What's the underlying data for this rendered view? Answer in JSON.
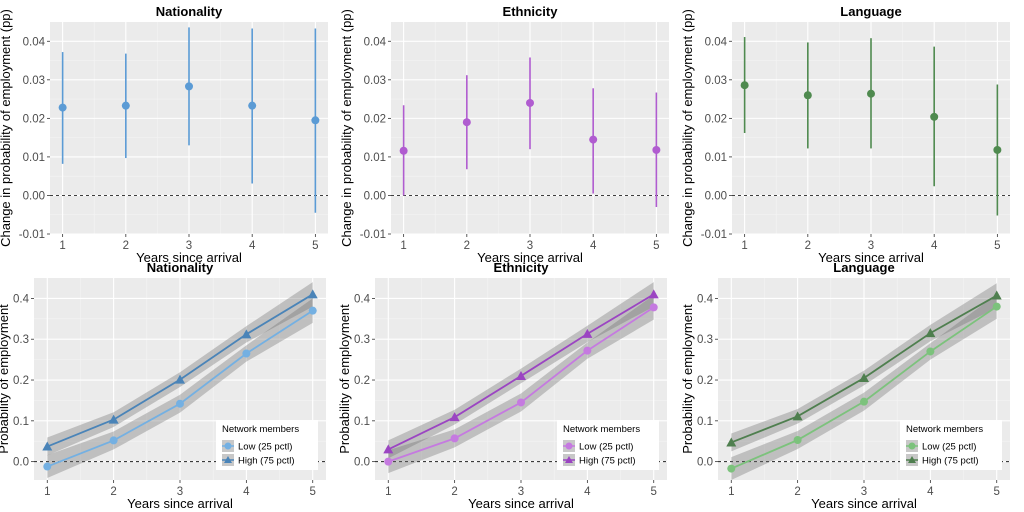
{
  "chart_data": [
    {
      "type": "scatter",
      "title": "Nationality",
      "xlabel": "Years since arrival",
      "ylabel": "Change in probability of employment (pp)",
      "x": [
        1,
        2,
        3,
        4,
        5
      ],
      "xlim": [
        0.8,
        5.2
      ],
      "ylim": [
        -0.01,
        0.045
      ],
      "xticks": [
        "1",
        "2",
        "3",
        "4",
        "5"
      ],
      "yticks": [
        "-0.01",
        "0.00",
        "0.01",
        "0.02",
        "0.03",
        "0.04"
      ],
      "ytick_values": [
        -0.01,
        0,
        0.01,
        0.02,
        0.03,
        0.04
      ],
      "reference_line": 0,
      "color": "#5b9bd5",
      "series": [
        {
          "values": [
            0.0228,
            0.0233,
            0.0283,
            0.0233,
            0.0195
          ],
          "lower": [
            0.0082,
            0.0097,
            0.013,
            0.0031,
            -0.0045
          ],
          "upper": [
            0.0372,
            0.0368,
            0.0436,
            0.0433,
            0.0433
          ]
        }
      ]
    },
    {
      "type": "scatter",
      "title": "Ethnicity",
      "xlabel": "Years since arrival",
      "ylabel": "Change in probability of employment (pp)",
      "x": [
        1,
        2,
        3,
        4,
        5
      ],
      "xlim": [
        0.8,
        5.2
      ],
      "ylim": [
        -0.01,
        0.045
      ],
      "xticks": [
        "1",
        "2",
        "3",
        "4",
        "5"
      ],
      "yticks": [
        "-0.01",
        "0.00",
        "0.01",
        "0.02",
        "0.03",
        "0.04"
      ],
      "ytick_values": [
        -0.01,
        0,
        0.01,
        0.02,
        0.03,
        0.04
      ],
      "reference_line": 0,
      "color": "#b05cd0",
      "series": [
        {
          "values": [
            0.0116,
            0.019,
            0.024,
            0.0145,
            0.0118
          ],
          "lower": [
            0.0,
            0.0068,
            0.012,
            0.0005,
            -0.003
          ],
          "upper": [
            0.0234,
            0.0312,
            0.0358,
            0.0278,
            0.0267
          ]
        }
      ]
    },
    {
      "type": "scatter",
      "title": "Language",
      "xlabel": "Years since arrival",
      "ylabel": "Change in probability of employment (pp)",
      "x": [
        1,
        2,
        3,
        4,
        5
      ],
      "xlim": [
        0.8,
        5.2
      ],
      "ylim": [
        -0.01,
        0.045
      ],
      "xticks": [
        "1",
        "2",
        "3",
        "4",
        "5"
      ],
      "yticks": [
        "-0.01",
        "0.00",
        "0.01",
        "0.02",
        "0.03",
        "0.04"
      ],
      "ytick_values": [
        -0.01,
        0,
        0.01,
        0.02,
        0.03,
        0.04
      ],
      "reference_line": 0,
      "color": "#4f8a4f",
      "series": [
        {
          "values": [
            0.0286,
            0.026,
            0.0264,
            0.0204,
            0.0118
          ],
          "lower": [
            0.0162,
            0.0122,
            0.0122,
            0.0024,
            -0.0052
          ],
          "upper": [
            0.0411,
            0.0397,
            0.0408,
            0.0386,
            0.0288
          ]
        }
      ]
    },
    {
      "type": "line",
      "title": "Nationality",
      "xlabel": "Years since arrival",
      "ylabel": "Probability of employment",
      "x": [
        1,
        2,
        3,
        4,
        5
      ],
      "xlim": [
        0.8,
        5.2
      ],
      "ylim": [
        -0.045,
        0.45
      ],
      "xticks": [
        "1",
        "2",
        "3",
        "4",
        "5"
      ],
      "yticks": [
        "0.0",
        "0.1",
        "0.2",
        "0.3",
        "0.4"
      ],
      "ytick_values": [
        0,
        0.1,
        0.2,
        0.3,
        0.4
      ],
      "reference_line": 0,
      "legend": {
        "title": "Network members",
        "position": "bottom-right"
      },
      "series": [
        {
          "name": "Low (25 pctl)",
          "marker": "circle",
          "color": "#74b0e2",
          "values": [
            -0.012,
            0.052,
            0.142,
            0.265,
            0.37
          ],
          "lower": [
            -0.04,
            0.03,
            0.12,
            0.245,
            0.34
          ],
          "upper": [
            0.016,
            0.074,
            0.164,
            0.285,
            0.4
          ]
        },
        {
          "name": "High (75 pctl)",
          "marker": "triangle",
          "color": "#4a84b8",
          "values": [
            0.037,
            0.103,
            0.201,
            0.312,
            0.41
          ],
          "lower": [
            0.015,
            0.085,
            0.183,
            0.292,
            0.38
          ],
          "upper": [
            0.059,
            0.121,
            0.219,
            0.332,
            0.44
          ]
        }
      ]
    },
    {
      "type": "line",
      "title": "Ethnicity",
      "xlabel": "Years since arrival",
      "ylabel": "Probability of employment",
      "x": [
        1,
        2,
        3,
        4,
        5
      ],
      "xlim": [
        0.8,
        5.2
      ],
      "ylim": [
        -0.045,
        0.45
      ],
      "xticks": [
        "1",
        "2",
        "3",
        "4",
        "5"
      ],
      "yticks": [
        "0.0",
        "0.1",
        "0.2",
        "0.3",
        "0.4"
      ],
      "ytick_values": [
        0,
        0.1,
        0.2,
        0.3,
        0.4
      ],
      "reference_line": 0,
      "legend": {
        "title": "Network members",
        "position": "bottom-right"
      },
      "series": [
        {
          "name": "Low (25 pctl)",
          "marker": "circle",
          "color": "#c57ae0",
          "values": [
            0.0,
            0.057,
            0.145,
            0.272,
            0.378
          ],
          "lower": [
            -0.028,
            0.035,
            0.123,
            0.252,
            0.348
          ],
          "upper": [
            0.028,
            0.079,
            0.167,
            0.292,
            0.408
          ]
        },
        {
          "name": "High (75 pctl)",
          "marker": "triangle",
          "color": "#9b45c2",
          "values": [
            0.03,
            0.109,
            0.21,
            0.313,
            0.41
          ],
          "lower": [
            0.008,
            0.091,
            0.192,
            0.293,
            0.38
          ],
          "upper": [
            0.052,
            0.127,
            0.228,
            0.333,
            0.44
          ]
        }
      ]
    },
    {
      "type": "line",
      "title": "Language",
      "xlabel": "Years since arrival",
      "ylabel": "Probability of employment",
      "x": [
        1,
        2,
        3,
        4,
        5
      ],
      "xlim": [
        0.8,
        5.2
      ],
      "ylim": [
        -0.045,
        0.45
      ],
      "xticks": [
        "1",
        "2",
        "3",
        "4",
        "5"
      ],
      "yticks": [
        "0.0",
        "0.1",
        "0.2",
        "0.3",
        "0.4"
      ],
      "ytick_values": [
        0,
        0.1,
        0.2,
        0.3,
        0.4
      ],
      "reference_line": 0,
      "legend": {
        "title": "Network members",
        "position": "bottom-right"
      },
      "series": [
        {
          "name": "Low (25 pctl)",
          "marker": "circle",
          "color": "#7cc27c",
          "values": [
            -0.017,
            0.053,
            0.147,
            0.27,
            0.38
          ],
          "lower": [
            -0.045,
            0.031,
            0.125,
            0.25,
            0.35
          ],
          "upper": [
            0.011,
            0.075,
            0.169,
            0.29,
            0.41
          ]
        },
        {
          "name": "High (75 pctl)",
          "marker": "triangle",
          "color": "#4f7f4f",
          "values": [
            0.047,
            0.111,
            0.205,
            0.315,
            0.407
          ],
          "lower": [
            0.025,
            0.093,
            0.187,
            0.295,
            0.377
          ],
          "upper": [
            0.069,
            0.129,
            0.223,
            0.335,
            0.437
          ]
        }
      ]
    }
  ]
}
